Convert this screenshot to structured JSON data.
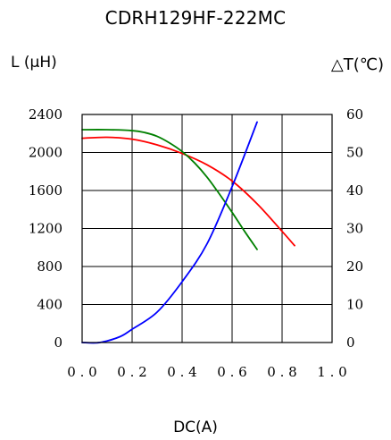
{
  "chart_data": {
    "type": "line",
    "title": "CDRH129HF-222MC",
    "xlabel": "DC(A)",
    "ylabel_left": "L (μH)",
    "ylabel_right": "△T(℃)",
    "xlim": [
      0.0,
      1.0
    ],
    "ylim_left": [
      0,
      2400
    ],
    "ylim_right": [
      0,
      60
    ],
    "x_ticks": [
      "0.0",
      "0.2",
      "0.4",
      "0.6",
      "0.8",
      "1.0"
    ],
    "y_left_ticks": [
      "0",
      "400",
      "800",
      "1200",
      "1600",
      "2000",
      "2400"
    ],
    "y_right_ticks": [
      "0",
      "10",
      "20",
      "30",
      "40",
      "50",
      "60"
    ],
    "grid": true,
    "series": [
      {
        "color": "#ff0000",
        "axis": "left",
        "x": [
          0.0,
          0.1,
          0.2,
          0.3,
          0.4,
          0.5,
          0.6,
          0.7,
          0.8,
          0.85
        ],
        "y": [
          2150,
          2160,
          2140,
          2080,
          1990,
          1870,
          1700,
          1460,
          1170,
          1020
        ]
      },
      {
        "color": "#008000",
        "axis": "left",
        "x": [
          0.0,
          0.1,
          0.2,
          0.25,
          0.3,
          0.35,
          0.4,
          0.45,
          0.5,
          0.55,
          0.6,
          0.65,
          0.7
        ],
        "y": [
          2240,
          2240,
          2230,
          2210,
          2170,
          2100,
          2010,
          1890,
          1740,
          1560,
          1370,
          1170,
          980
        ]
      },
      {
        "color": "#0000ff",
        "axis": "right",
        "x": [
          0.0,
          0.07,
          0.15,
          0.2,
          0.3,
          0.4,
          0.5,
          0.6,
          0.7
        ],
        "y": [
          0,
          0,
          1.5,
          3.5,
          8,
          16,
          26,
          41,
          58
        ]
      }
    ]
  }
}
